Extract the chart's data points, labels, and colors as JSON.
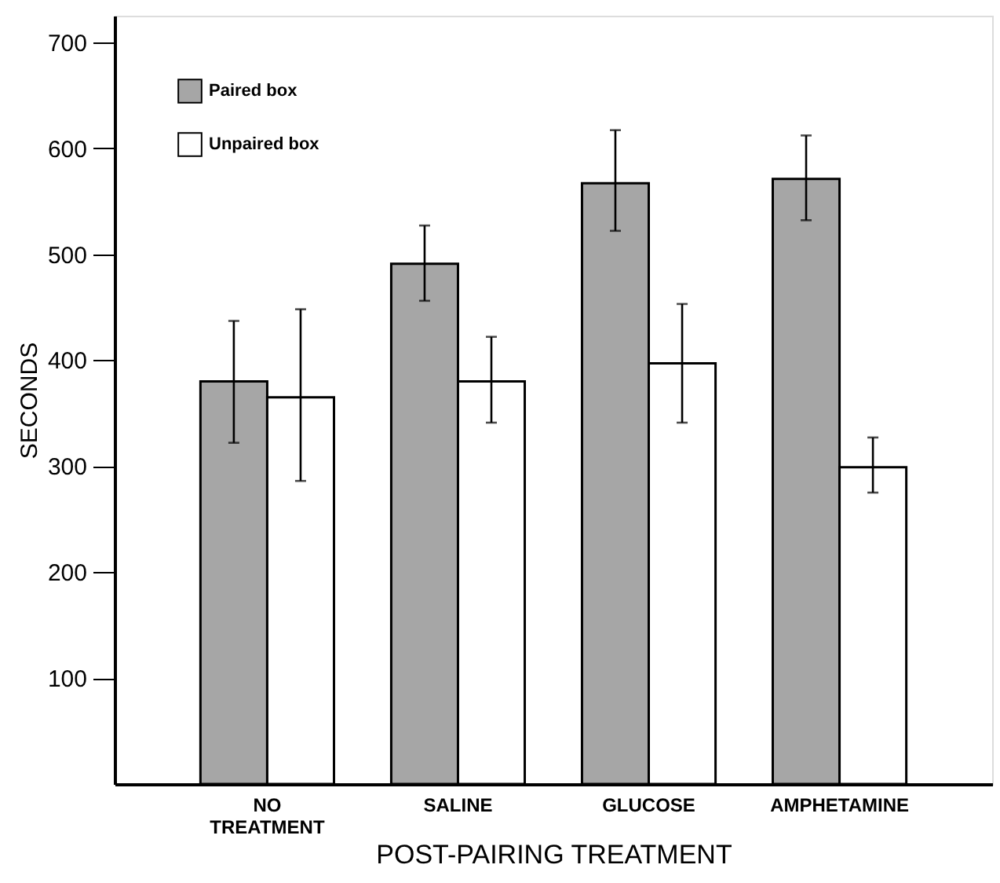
{
  "chart_data": {
    "type": "bar",
    "xlabel": "POST-PAIRING TREATMENT",
    "ylabel": "SECONDS",
    "categories": [
      "NO TREATMENT",
      "SALINE",
      "GLUCOSE",
      "AMPHETAMINE"
    ],
    "series": [
      {
        "name": "Paired box",
        "color": "#a6a6a6",
        "values": [
          380,
          491,
          567,
          571
        ],
        "errors": [
          [
            322,
            437
          ],
          [
            456,
            527
          ],
          [
            522,
            617
          ],
          [
            532,
            612
          ]
        ]
      },
      {
        "name": "Unpaired box",
        "color": "#ffffff",
        "values": [
          365,
          380,
          397,
          299
        ],
        "errors": [
          [
            286,
            448
          ],
          [
            341,
            422
          ],
          [
            341,
            453
          ],
          [
            275,
            327
          ]
        ]
      }
    ],
    "ylim": [
      0,
      725
    ],
    "yticks": [
      100,
      200,
      300,
      400,
      500,
      600,
      700
    ],
    "grid": false,
    "legend": "top left"
  }
}
